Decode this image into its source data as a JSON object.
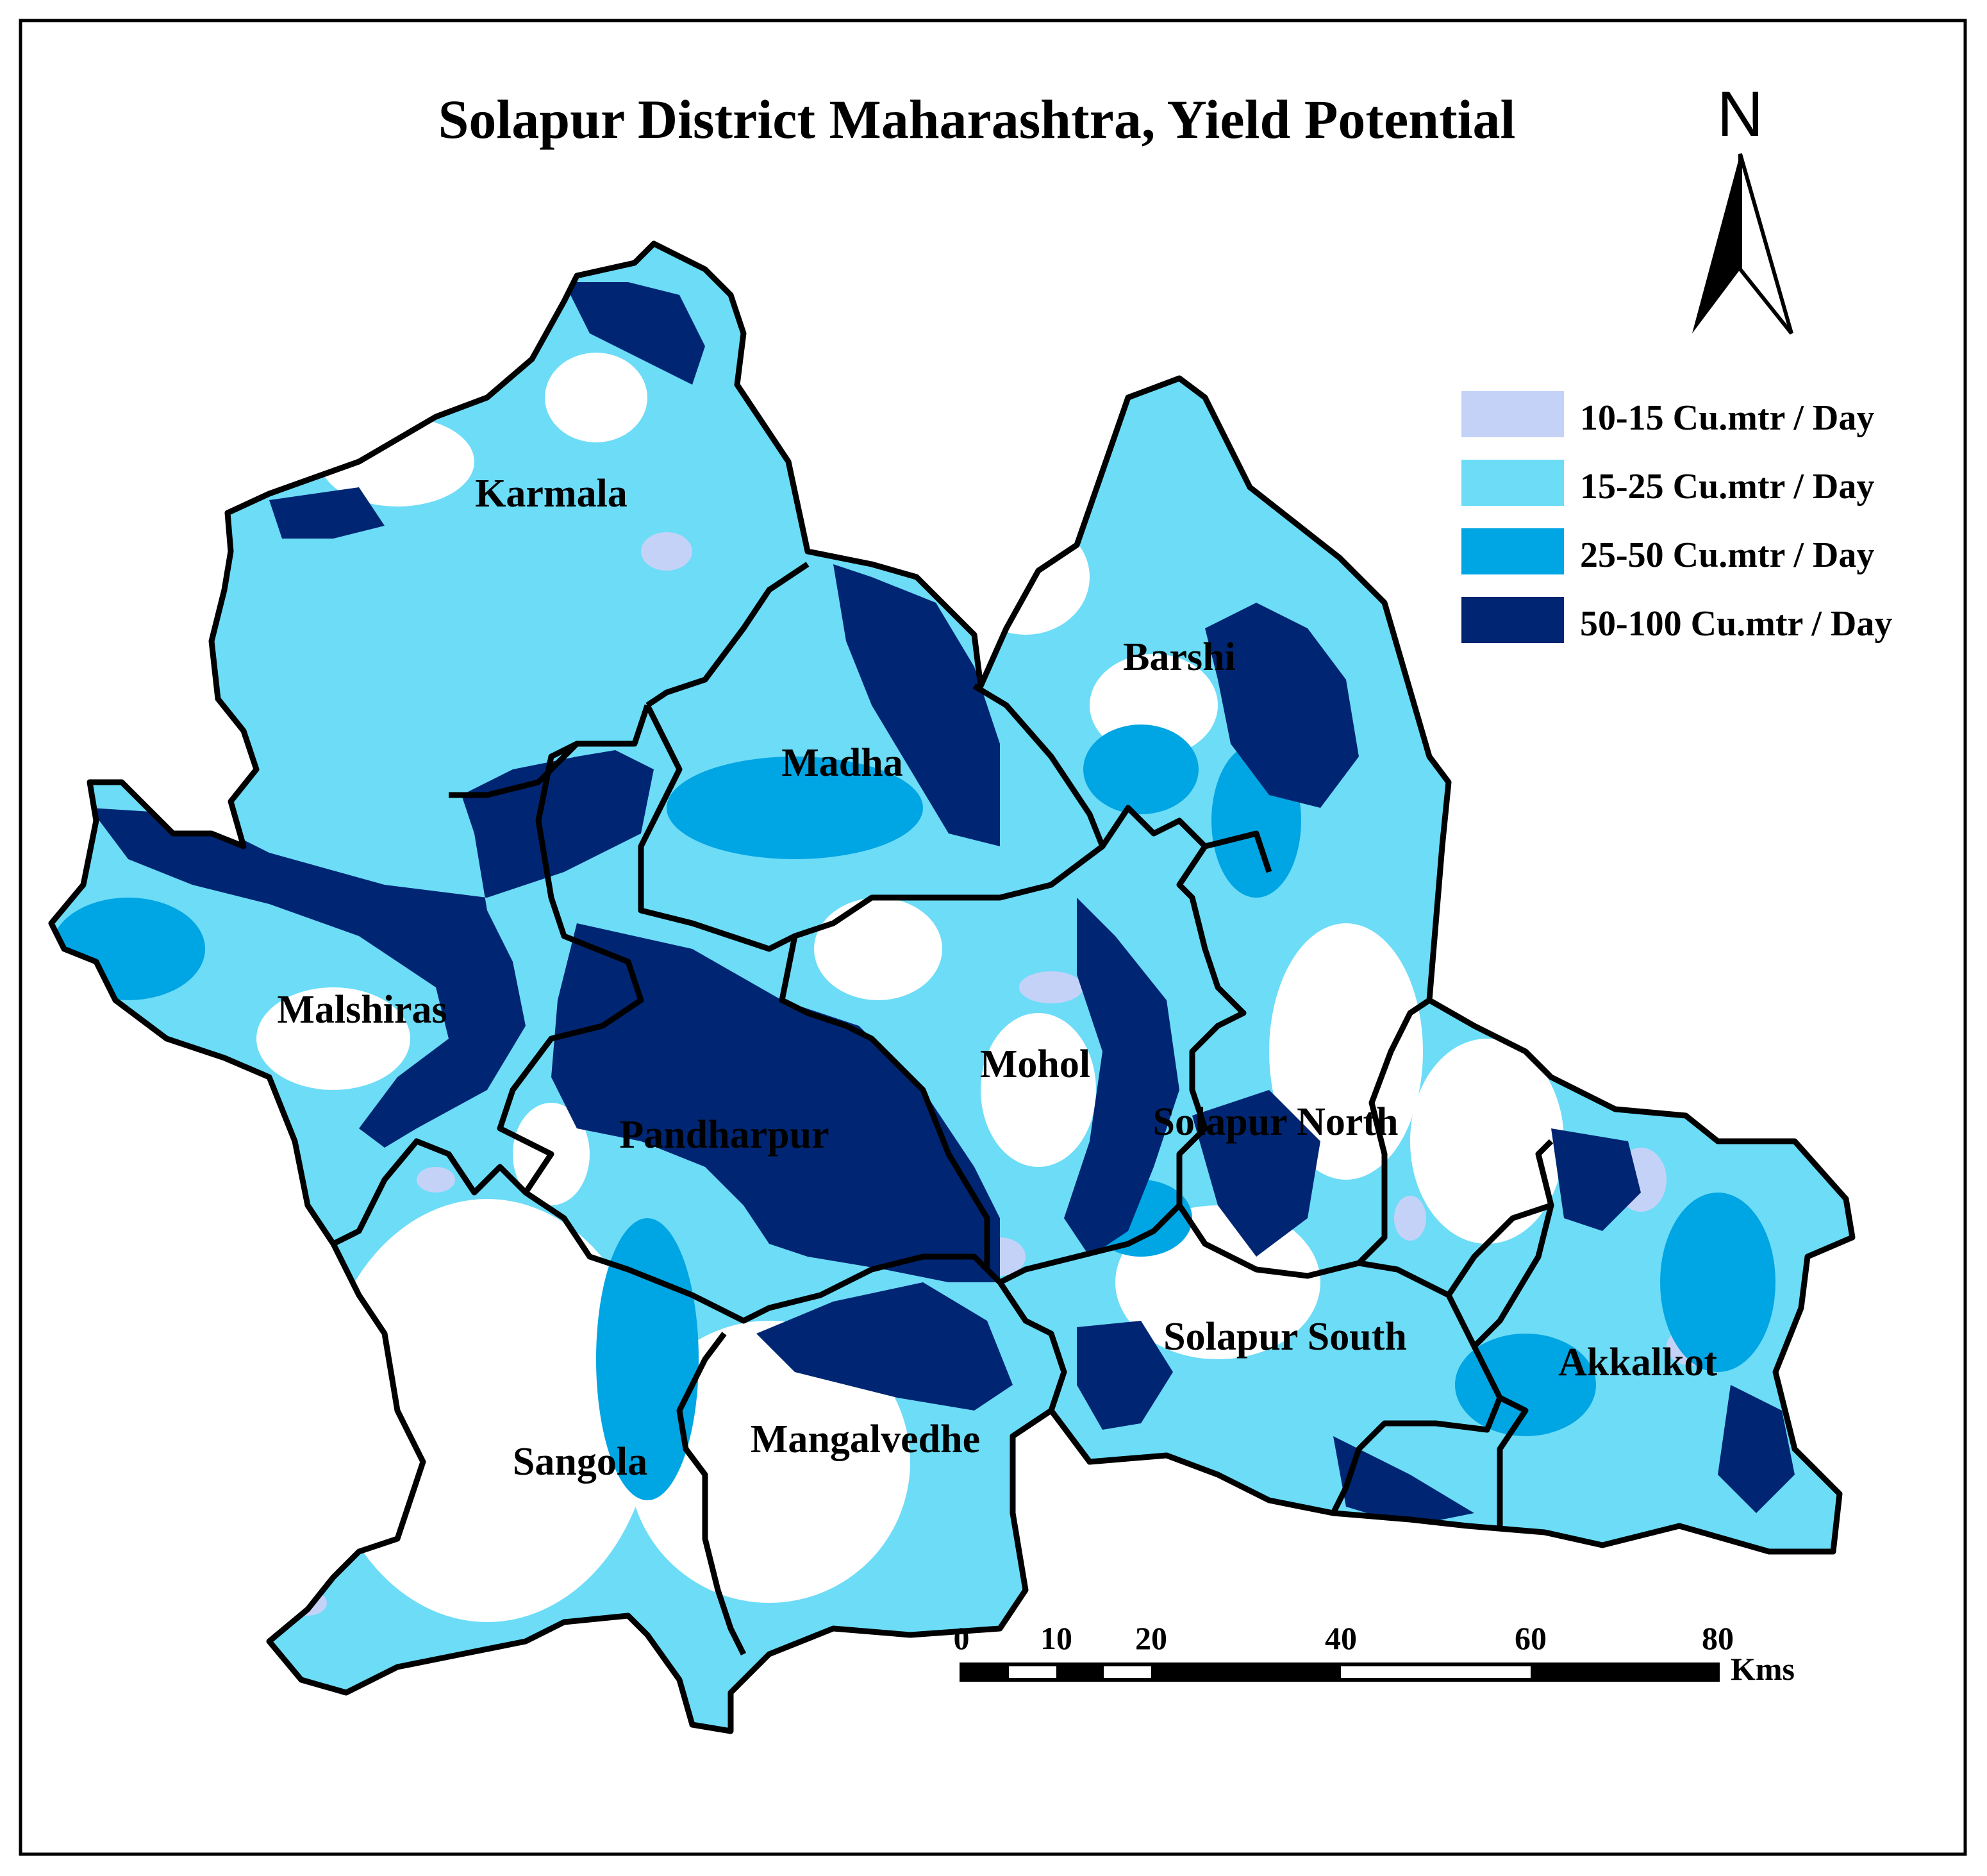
{
  "title": "Solapur District Maharashtra, Yield Potential",
  "north_label": "N",
  "legend": [
    {
      "label": "10-15 Cu.mtr / Day",
      "color": "#c5d2f7"
    },
    {
      "label": "15-25 Cu.mtr / Day",
      "color": "#6cdcf7"
    },
    {
      "label": "25-50 Cu.mtr / Day",
      "color": "#00a5e3"
    },
    {
      "label": "50-100 Cu.mtr / Day",
      "color": "#002673"
    }
  ],
  "talukas": [
    {
      "name": "Karmala"
    },
    {
      "name": "Barshi"
    },
    {
      "name": "Madha"
    },
    {
      "name": "Malshiras"
    },
    {
      "name": "Mohol"
    },
    {
      "name": "Pandharpur"
    },
    {
      "name": "Solapur North"
    },
    {
      "name": "Solapur South"
    },
    {
      "name": "Akkalkot"
    },
    {
      "name": "Mangalvedhe"
    },
    {
      "name": "Sangola"
    }
  ],
  "scale_bar": {
    "ticks": [
      "0",
      "10",
      "20",
      "40",
      "60",
      "80"
    ],
    "unit": "Kms"
  }
}
